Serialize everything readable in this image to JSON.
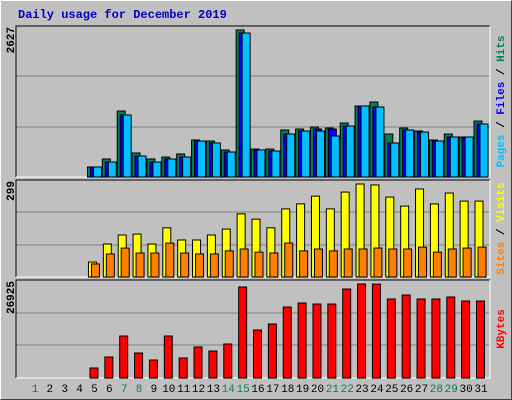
{
  "chart_data": [
    {
      "type": "bar",
      "title": "Daily usage for December 2019",
      "ylim": [
        0,
        2627
      ],
      "yticks": [
        2627
      ],
      "legend_separator": " / ",
      "series": [
        {
          "name": "Hits",
          "color": "#00805c",
          "values": [
            0,
            0,
            0,
            0,
            179,
            322,
            1179,
            429,
            322,
            357,
            411,
            661,
            643,
            483,
            2627,
            500,
            500,
            840,
            858,
            894,
            876,
            965,
            1269,
            1340,
            768,
            876,
            822,
            661,
            768,
            715,
            1000
          ]
        },
        {
          "name": "Files",
          "color": "#0000ff",
          "values": [
            0,
            0,
            0,
            0,
            179,
            268,
            1108,
            375,
            268,
            322,
            357,
            643,
            608,
            447,
            2573,
            483,
            465,
            768,
            822,
            858,
            858,
            911,
            1269,
            1251,
            608,
            840,
            804,
            643,
            715,
            715,
            947
          ]
        },
        {
          "name": "Pages",
          "color": "#00c0ff",
          "values": [
            0,
            0,
            0,
            0,
            179,
            268,
            1108,
            375,
            268,
            322,
            357,
            643,
            608,
            447,
            2573,
            483,
            465,
            768,
            822,
            822,
            733,
            911,
            1269,
            1251,
            608,
            840,
            804,
            643,
            715,
            715,
            947
          ]
        }
      ]
    },
    {
      "type": "bar",
      "ylim": [
        0,
        299
      ],
      "yticks": [
        299
      ],
      "legend_separator": " / ",
      "series": [
        {
          "name": "Visits",
          "color": "#ffff00",
          "values": [
            0,
            0,
            0,
            0,
            48,
            106,
            135,
            138,
            106,
            158,
            119,
            119,
            135,
            154,
            203,
            186,
            158,
            219,
            235,
            260,
            219,
            273,
            299,
            296,
            257,
            228,
            283,
            235,
            270,
            244,
            244
          ]
        },
        {
          "name": "Sites",
          "color": "#ff8000",
          "values": [
            0,
            0,
            0,
            0,
            42,
            74,
            93,
            77,
            77,
            109,
            77,
            74,
            74,
            84,
            90,
            80,
            77,
            109,
            84,
            90,
            84,
            90,
            90,
            93,
            90,
            90,
            96,
            80,
            90,
            93,
            96
          ]
        }
      ]
    },
    {
      "type": "bar",
      "ylim": [
        0,
        26925
      ],
      "yticks": [
        26925
      ],
      "categories": [
        "1",
        "2",
        "3",
        "4",
        "5",
        "6",
        "7",
        "8",
        "9",
        "10",
        "11",
        "12",
        "13",
        "14",
        "15",
        "16",
        "17",
        "18",
        "19",
        "20",
        "21",
        "22",
        "23",
        "24",
        "25",
        "26",
        "27",
        "28",
        "29",
        "30",
        "31"
      ],
      "category_colors": [
        "#00805c",
        "#000000",
        "#000000",
        "#000000",
        "#000000",
        "#000000",
        "#00805c",
        "#00805c",
        "#000000",
        "#000000",
        "#000000",
        "#000000",
        "#000000",
        "#00805c",
        "#00805c",
        "#000000",
        "#000000",
        "#000000",
        "#000000",
        "#000000",
        "#00805c",
        "#00805c",
        "#000000",
        "#000000",
        "#000000",
        "#000000",
        "#000000",
        "#00805c",
        "#00805c",
        "#000000",
        "#000000"
      ],
      "series": [
        {
          "name": "KBytes",
          "color": "#ff0000",
          "values": [
            0,
            0,
            0,
            0,
            2864,
            6010,
            12030,
            7160,
            5150,
            12030,
            5730,
            8880,
            7730,
            9740,
            26070,
            13750,
            15470,
            20330,
            21480,
            21190,
            21190,
            25490,
            26925,
            26900,
            22630,
            23770,
            22630,
            22630,
            23200,
            22050,
            22050
          ]
        }
      ]
    }
  ]
}
